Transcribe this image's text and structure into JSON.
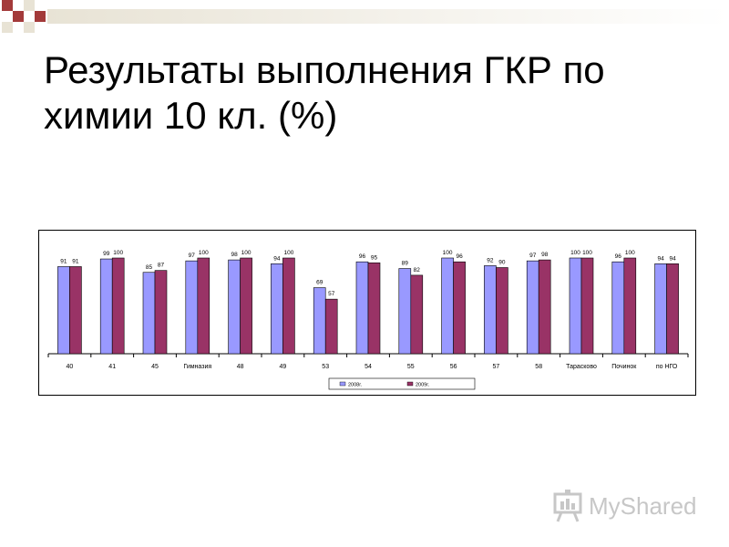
{
  "slide": {
    "title_line1": "Результаты выполнения ГКР по",
    "title_line2": "химии 10 кл. (%)"
  },
  "watermark": {
    "text": "MyShared",
    "icon": "presentation-board-icon"
  },
  "colors": {
    "series_2008": "#9999ff",
    "series_2009": "#993366",
    "deco_red": "#a33a3a",
    "deco_light": "#e8e3d5"
  },
  "chart_data": {
    "type": "bar",
    "title": "",
    "xlabel": "",
    "ylabel": "",
    "ylim": [
      0,
      110
    ],
    "grid": false,
    "legend": "bottom",
    "categories": [
      "40",
      "41",
      "45",
      "Гимназия",
      "48",
      "49",
      "53",
      "54",
      "55",
      "56",
      "57",
      "58",
      "Тарасково",
      "Починок",
      "по НГО"
    ],
    "series": [
      {
        "name": "2008г.",
        "values": [
          91,
          99,
          85,
          97,
          98,
          94,
          69,
          96,
          89,
          100,
          92,
          97,
          100,
          96,
          94
        ]
      },
      {
        "name": "2009г.",
        "values": [
          91,
          100,
          87,
          100,
          100,
          100,
          57,
          95,
          82,
          96,
          90,
          98,
          100,
          100,
          94
        ]
      }
    ]
  }
}
